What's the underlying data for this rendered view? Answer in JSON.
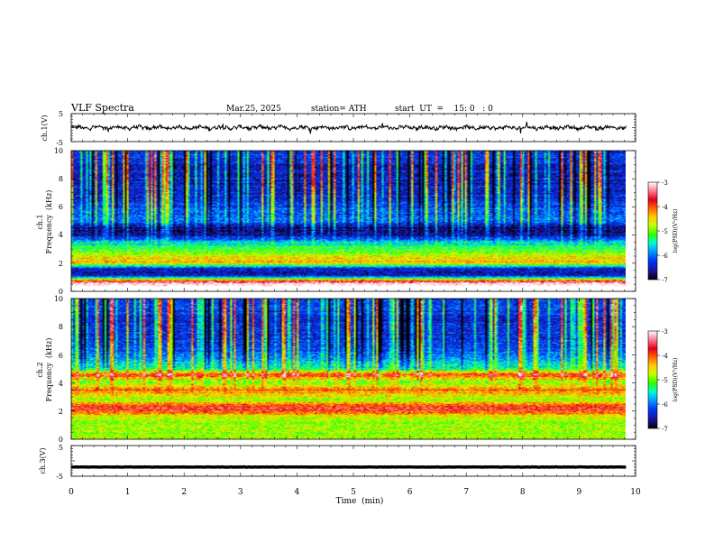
{
  "header": {
    "title": "VLF  Spectra",
    "date": "Mar.25, 2025",
    "station": "station= ATH",
    "start_ut": "start  UT  =    15: 0   : 0"
  },
  "panels": {
    "ch1_label": "ch.1(V)",
    "ch3_label": "ch.3(V)",
    "ch1_spec_label": "ch.1",
    "ch2_spec_label": "ch.2",
    "freq_label": "Frequency  (kHz)",
    "xlabel": "Time  (min)"
  },
  "colorbar": {
    "label": "log(PSD)(V²/Hz)",
    "ticks": [
      "-3",
      "-4",
      "-5",
      "-6",
      "-7"
    ],
    "stops": [
      "#000000",
      "#1a0f8c",
      "#0038ff",
      "#00a8ff",
      "#00ffd0",
      "#27ff00",
      "#c8ff00",
      "#ffd000",
      "#ff5a00",
      "#e0001a",
      "#ff6a8a",
      "#ffd6e0",
      "#ffffff"
    ]
  },
  "chart_data": [
    {
      "type": "line",
      "name": "ch1-waveform",
      "xlim": [
        0,
        10
      ],
      "ylim": [
        -5,
        5
      ],
      "yticks": [
        "5",
        "-5"
      ],
      "xticks": [
        "0",
        "1",
        "2",
        "3",
        "4",
        "5",
        "6",
        "7",
        "8",
        "9",
        "10"
      ],
      "data_end_min": 9.83,
      "y_mean": 0,
      "y_amplitude": 0.9
    },
    {
      "type": "heatmap",
      "name": "ch1-spectrogram",
      "xlim": [
        0,
        10
      ],
      "ylim": [
        0,
        10
      ],
      "yticks": [
        "0",
        "2",
        "4",
        "6",
        "8",
        "10"
      ],
      "data_end_min": 9.83,
      "color_range": [
        -7,
        -3
      ],
      "bands_khz": [
        {
          "f": 0.2,
          "level": -2.5
        },
        {
          "f": 0.6,
          "level": -3.2
        },
        {
          "f": 1.1,
          "level": -6.6
        },
        {
          "f": 1.6,
          "level": -6.5
        },
        {
          "f": 2.0,
          "level": -4.4
        },
        {
          "f": 2.4,
          "level": -4.6
        },
        {
          "f": 3.0,
          "level": -5.2
        },
        {
          "f": 3.4,
          "level": -5.6
        },
        {
          "f": 4.0,
          "level": -6.6
        },
        {
          "f": 4.5,
          "level": -6.7
        },
        {
          "f": 5.0,
          "level": -6.1
        },
        {
          "f": 6.0,
          "level": -6.2
        },
        {
          "f": 7.0,
          "level": -6.4
        },
        {
          "f": 8.5,
          "level": -6.5
        },
        {
          "f": 9.5,
          "level": -6.3
        }
      ]
    },
    {
      "type": "heatmap",
      "name": "ch2-spectrogram",
      "xlim": [
        0,
        10
      ],
      "ylim": [
        0,
        10
      ],
      "yticks": [
        "0",
        "2",
        "4",
        "6",
        "8",
        "10"
      ],
      "data_end_min": 9.83,
      "color_range": [
        -7,
        -3
      ],
      "bands_khz": [
        {
          "f": 0.3,
          "level": -4.8
        },
        {
          "f": 1.0,
          "level": -4.9
        },
        {
          "f": 1.6,
          "level": -4.7
        },
        {
          "f": 2.0,
          "level": -3.9
        },
        {
          "f": 2.2,
          "level": -3.6
        },
        {
          "f": 2.8,
          "level": -4.9
        },
        {
          "f": 3.5,
          "level": -4.1
        },
        {
          "f": 4.0,
          "level": -5.0
        },
        {
          "f": 4.6,
          "level": -3.9
        },
        {
          "f": 5.0,
          "level": -5.4
        },
        {
          "f": 6.0,
          "level": -6.0
        },
        {
          "f": 7.0,
          "level": -6.3
        },
        {
          "f": 8.5,
          "level": -6.4
        },
        {
          "f": 9.5,
          "level": -6.2
        }
      ]
    },
    {
      "type": "line",
      "name": "ch3-waveform",
      "xlim": [
        0,
        10
      ],
      "ylim": [
        -5,
        5
      ],
      "yticks": [
        "5",
        "-5"
      ],
      "xticks": [
        "0",
        "1",
        "2",
        "3",
        "4",
        "5",
        "6",
        "7",
        "8",
        "9",
        "10"
      ],
      "xlabel": "Time  (min)",
      "data_end_min": 9.83,
      "y_mean": -2.0,
      "y_amplitude": 0.1
    }
  ]
}
